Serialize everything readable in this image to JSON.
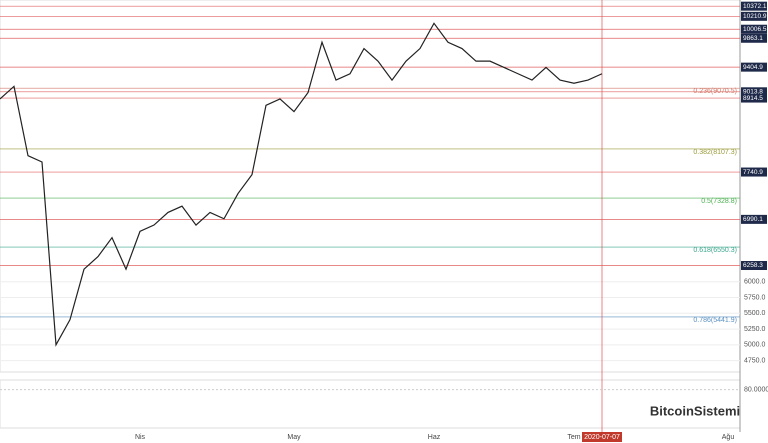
{
  "chart_data": {
    "type": "line",
    "color": "#222222",
    "categories": [
      "",
      null,
      null,
      null,
      null,
      null,
      null,
      null,
      null,
      null,
      "Nis",
      null,
      null,
      null,
      null,
      null,
      null,
      null,
      null,
      null,
      null,
      "May",
      null,
      null,
      null,
      null,
      null,
      null,
      null,
      null,
      null,
      "Haz",
      null,
      null,
      null,
      null,
      null,
      null,
      null,
      null,
      null,
      "Tem",
      null,
      "2020-07-07",
      null,
      null,
      null,
      null,
      null,
      null,
      null,
      null,
      "Ağu"
    ],
    "values": [
      8900,
      9100,
      8000,
      7900,
      5000,
      5400,
      6200,
      6400,
      6700,
      6200,
      6800,
      6900,
      7100,
      7200,
      6900,
      7100,
      7000,
      7400,
      7700,
      8800,
      8900,
      8700,
      9000,
      9800,
      9200,
      9300,
      9700,
      9500,
      9200,
      9500,
      9700,
      10100,
      9800,
      9700,
      9500,
      9500,
      9400,
      9300,
      9200,
      9400,
      9200,
      9150,
      9200,
      9300,
      null,
      null,
      null,
      null,
      null,
      null,
      null,
      null,
      null
    ],
    "ylim": [
      4569,
      10470
    ],
    "yticks": [
      {
        "value": 6000,
        "label": "6000.0"
      },
      {
        "value": 5750,
        "label": "5750.0"
      },
      {
        "value": 5500,
        "label": "5500.0"
      },
      {
        "value": 5250,
        "label": "5250.0"
      },
      {
        "value": 5000,
        "label": "5000.0"
      },
      {
        "value": 4750,
        "label": "4750.0"
      }
    ],
    "levels": [
      10372.1,
      10210.9,
      10006.5,
      9863.1,
      9404.9,
      9013.8,
      8914.5,
      7740.9,
      6990.1,
      6258.3
    ],
    "level_color": "#e06060",
    "fibonacci": [
      {
        "value": 9070.5,
        "label": "0.236(9070.5)",
        "color": "#d07a6a"
      },
      {
        "value": 8107.3,
        "label": "0.382(8107.3)",
        "color": "#9a9a3a"
      },
      {
        "value": 7328.8,
        "label": "0.5(7328.8)",
        "color": "#4caf50"
      },
      {
        "value": 6550.3,
        "label": "0.618(6550.3)",
        "color": "#3aa58a"
      },
      {
        "value": 5441.9,
        "label": "0.786(5441.9)",
        "color": "#5a8fc0"
      }
    ],
    "rsi": {
      "ylim": [
        0,
        100
      ],
      "yticks": [
        {
          "value": 80,
          "label": "80.0000"
        }
      ]
    },
    "watermark": "BitcoinSistemi"
  }
}
